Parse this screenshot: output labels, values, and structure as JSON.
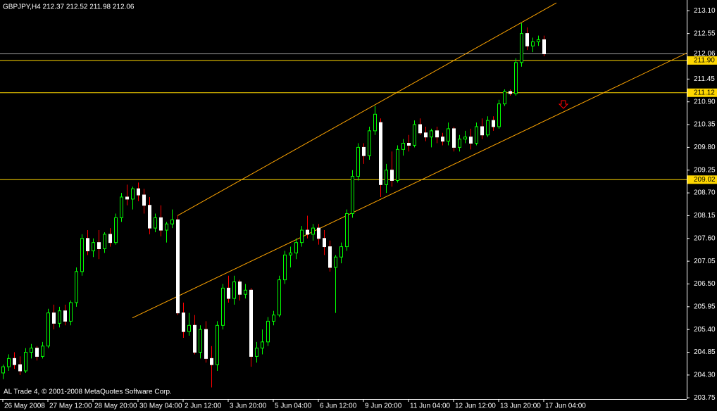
{
  "chart_data": {
    "type": "candlestick",
    "title": "GBPJPY,H4  212.37 212.52 211.98 212.06",
    "footer": "AL Trade 4, © 2001-2008 MetaQuotes Software Corp.",
    "categories": [
      "26 May 2008",
      null,
      null,
      null,
      null,
      null,
      null,
      null,
      "27 May 12:00",
      null,
      null,
      null,
      null,
      null,
      null,
      null,
      "28 May 20:00",
      null,
      null,
      null,
      null,
      null,
      null,
      null,
      "30 May 04:00",
      null,
      null,
      null,
      null,
      null,
      null,
      null,
      "2 Jun 12:00",
      null,
      null,
      null,
      null,
      null,
      null,
      null,
      "3 Jun 20:00",
      null,
      null,
      null,
      null,
      null,
      null,
      null,
      "5 Jun 04:00",
      null,
      null,
      null,
      null,
      null,
      null,
      null,
      "6 Jun 12:00",
      null,
      null,
      null,
      null,
      null,
      null,
      null,
      "9 Jun 20:00",
      null,
      null,
      null,
      null,
      null,
      null,
      null,
      "11 Jun 04:00",
      null,
      null,
      null,
      null,
      null,
      null,
      null,
      "12 Jun 12:00",
      null,
      null,
      null,
      null,
      null,
      null,
      null,
      "13 Jun 20:00",
      null,
      null,
      null,
      null,
      null,
      null,
      null,
      "17 Jun 04:00"
    ],
    "open": [
      204.35,
      204.5,
      204.7,
      204.55,
      204.4,
      204.85,
      204.95,
      204.75,
      205.0,
      205.8,
      205.55,
      205.85,
      205.6,
      206.05,
      206.8,
      207.6,
      207.3,
      207.5,
      207.35,
      207.7,
      207.5,
      208.1,
      208.6,
      208.55,
      208.8,
      208.65,
      208.4,
      207.85,
      208.1,
      207.8,
      207.95,
      208.05,
      205.8,
      205.35,
      205.5,
      204.85,
      205.4,
      204.7,
      204.55,
      205.5,
      206.4,
      206.15,
      206.55,
      206.25,
      206.35,
      204.75,
      204.95,
      205.1,
      205.6,
      205.75,
      206.6,
      207.2,
      207.25,
      207.5,
      207.8,
      207.7,
      207.85,
      207.6,
      207.4,
      206.9,
      207.15,
      207.4,
      208.2,
      209.1,
      209.8,
      209.6,
      210.2,
      210.4,
      208.9,
      209.25,
      209.0,
      209.75,
      209.9,
      209.85,
      210.35,
      210.15,
      210.05,
      210.2,
      210.05,
      209.95,
      210.25,
      209.8,
      210.0,
      210.05,
      209.9,
      210.3,
      210.1,
      210.45,
      210.3,
      210.85,
      211.15,
      211.1,
      211.85,
      212.55,
      212.25,
      212.35,
      212.4
    ],
    "high": [
      204.55,
      204.8,
      204.85,
      204.75,
      204.95,
      205.05,
      205.0,
      205.1,
      205.9,
      206.0,
      205.95,
      206.0,
      206.1,
      206.9,
      207.7,
      207.8,
      207.6,
      207.8,
      207.75,
      207.85,
      208.2,
      208.7,
      208.9,
      208.85,
      208.95,
      208.8,
      208.6,
      208.2,
      208.4,
      208.0,
      208.3,
      208.15,
      206.05,
      205.8,
      205.75,
      205.5,
      205.6,
      205.0,
      205.6,
      206.5,
      206.7,
      206.7,
      206.6,
      206.5,
      206.4,
      205.1,
      205.4,
      205.7,
      205.85,
      206.7,
      207.3,
      207.4,
      207.6,
      207.9,
      208.15,
      207.95,
      207.95,
      207.8,
      207.55,
      207.2,
      207.5,
      208.3,
      209.25,
      209.9,
      209.9,
      210.3,
      210.8,
      210.5,
      209.4,
      209.7,
      209.85,
      210.0,
      210.1,
      210.45,
      210.5,
      210.3,
      210.25,
      210.3,
      210.15,
      210.4,
      210.3,
      210.1,
      210.2,
      210.25,
      210.4,
      210.5,
      210.55,
      210.55,
      210.95,
      211.2,
      211.2,
      211.95,
      212.8,
      212.7,
      212.45,
      212.5,
      212.5
    ],
    "low": [
      204.2,
      204.4,
      204.45,
      204.3,
      204.35,
      204.7,
      204.65,
      204.7,
      204.95,
      205.4,
      205.45,
      205.5,
      205.5,
      205.95,
      206.7,
      207.2,
      207.15,
      207.1,
      207.25,
      207.4,
      207.45,
      208.0,
      208.4,
      208.3,
      208.5,
      208.2,
      207.7,
      207.75,
      207.65,
      207.5,
      207.85,
      205.75,
      205.2,
      205.25,
      204.8,
      204.7,
      204.6,
      204.0,
      204.4,
      205.4,
      206.05,
      206.0,
      206.1,
      206.15,
      204.5,
      204.6,
      204.8,
      205.0,
      205.5,
      205.7,
      206.5,
      206.9,
      207.1,
      207.4,
      207.6,
      207.55,
      207.45,
      207.2,
      206.8,
      205.8,
      207.0,
      207.3,
      208.1,
      209.0,
      209.4,
      209.5,
      210.1,
      208.6,
      208.7,
      208.85,
      208.95,
      209.6,
      209.7,
      209.8,
      210.1,
      209.95,
      209.8,
      209.9,
      209.85,
      209.85,
      209.7,
      209.7,
      209.9,
      209.75,
      209.85,
      210.0,
      210.05,
      210.2,
      210.25,
      210.8,
      211.05,
      211.05,
      211.75,
      212.15,
      212.1,
      212.25,
      212.0
    ],
    "close": [
      204.5,
      204.7,
      204.55,
      204.4,
      204.85,
      204.95,
      204.75,
      205.0,
      205.8,
      205.55,
      205.85,
      205.6,
      206.05,
      206.8,
      207.6,
      207.3,
      207.5,
      207.35,
      207.7,
      207.5,
      208.1,
      208.6,
      208.55,
      208.8,
      208.65,
      208.4,
      207.85,
      208.1,
      207.8,
      207.95,
      208.05,
      205.8,
      205.35,
      205.5,
      204.85,
      205.4,
      204.7,
      204.55,
      205.5,
      206.4,
      206.15,
      206.55,
      206.25,
      206.35,
      204.75,
      204.95,
      205.1,
      205.6,
      205.75,
      206.6,
      207.2,
      207.25,
      207.5,
      207.8,
      207.7,
      207.85,
      207.6,
      207.4,
      206.9,
      207.15,
      207.4,
      208.2,
      209.1,
      209.8,
      209.6,
      210.2,
      210.6,
      208.9,
      209.25,
      209.0,
      209.75,
      209.9,
      209.85,
      210.35,
      210.15,
      210.05,
      210.2,
      210.05,
      209.95,
      210.25,
      209.8,
      210.0,
      210.05,
      209.9,
      210.3,
      210.1,
      210.45,
      210.3,
      210.85,
      211.15,
      211.1,
      211.85,
      212.55,
      212.25,
      212.35,
      212.4,
      212.06
    ],
    "up_color": "#00ff00",
    "down_color": "#ff0000",
    "up_body": "#000000",
    "down_body": "#ffffff",
    "ylim": [
      203.72,
      213.36
    ],
    "yticks": [
      {
        "value": 213.1,
        "label": "213.10"
      },
      212.55,
      211.45,
      {
        "value": 210.9,
        "label": "210.90"
      },
      210.35,
      {
        "value": 209.8,
        "label": "209.80"
      },
      209.25,
      {
        "value": 208.7,
        "label": "208.70"
      },
      208.15,
      {
        "value": 207.6,
        "label": "207.60"
      },
      207.05,
      {
        "value": 206.5,
        "label": "206.50"
      },
      205.95,
      {
        "value": 205.4,
        "label": "205.40"
      },
      204.85,
      {
        "value": 204.3,
        "label": "204.30"
      },
      203.75
    ],
    "bid": {
      "value": 212.06,
      "label": "212.06",
      "color": "#a0a0a0"
    },
    "hlines": [
      {
        "value": 211.9,
        "label": "211.90"
      },
      {
        "value": 211.12,
        "label": "211.12"
      },
      {
        "value": 209.02,
        "label": "209.02"
      }
    ],
    "hline_color": "#ffd700",
    "trendlines": [
      {
        "x": [
          31,
          98.25
        ],
        "y": [
          208.15,
          213.29
        ]
      },
      {
        "x": [
          23,
          121.4
        ],
        "y": [
          205.68,
          212.08
        ]
      }
    ],
    "trend_color": "#ffa500"
  }
}
